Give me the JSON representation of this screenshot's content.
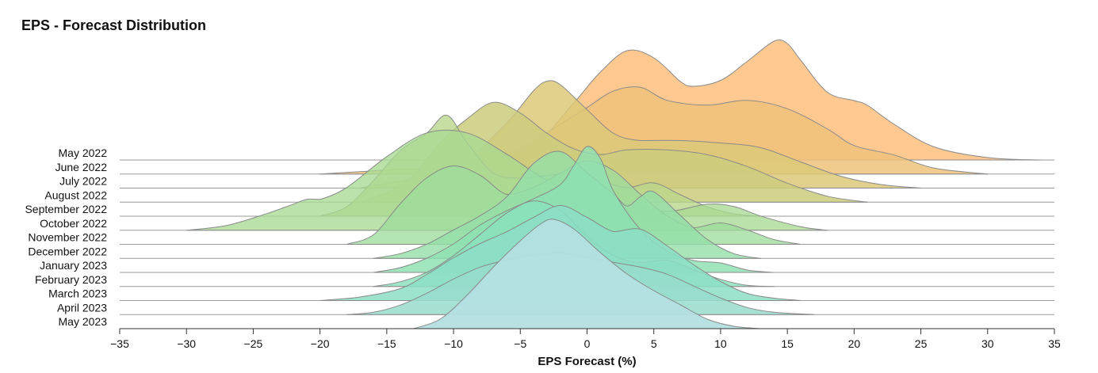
{
  "chart_data": {
    "type": "ridgeline",
    "title": "EPS - Forecast Distribution",
    "xlabel": "EPS Forecast (%)",
    "ylabel": "",
    "xlim": [
      -35,
      35
    ],
    "x_ticks": [
      -35,
      -30,
      -25,
      -20,
      -15,
      -10,
      -5,
      0,
      5,
      10,
      15,
      20,
      25,
      30,
      35
    ],
    "grid": false,
    "series": [
      {
        "name": "May 2022",
        "color": "#fdbf7e",
        "opacity": 0.85,
        "x": [
          -10,
          -7,
          -4,
          -1,
          1,
          3,
          5,
          7,
          8,
          10,
          12,
          14,
          15,
          16,
          18,
          20,
          21,
          23,
          26,
          30,
          34
        ],
        "density": [
          0,
          0.04,
          0.12,
          0.48,
          0.74,
          0.92,
          0.86,
          0.66,
          0.62,
          0.67,
          0.83,
          1.0,
          0.98,
          0.84,
          0.57,
          0.5,
          0.46,
          0.3,
          0.11,
          0.02,
          0
        ]
      },
      {
        "name": "June 2022",
        "color": "#f0c27a",
        "opacity": 0.85,
        "x": [
          -20,
          -17,
          -14,
          -10,
          -7,
          -4,
          -2,
          0,
          2,
          4,
          6,
          9,
          12,
          15,
          18,
          20,
          23,
          26,
          30
        ],
        "density": [
          0,
          0.02,
          0.04,
          0.05,
          0.1,
          0.28,
          0.42,
          0.56,
          0.7,
          0.73,
          0.62,
          0.58,
          0.62,
          0.55,
          0.38,
          0.24,
          0.16,
          0.05,
          0
        ]
      },
      {
        "name": "July 2022",
        "color": "#dcc978",
        "opacity": 0.85,
        "x": [
          -17,
          -15,
          -12,
          -9,
          -6,
          -4,
          -3,
          -2,
          0,
          2,
          4,
          7,
          10,
          13,
          16,
          19,
          22,
          25
        ],
        "density": [
          0,
          0.04,
          0.1,
          0.24,
          0.55,
          0.82,
          0.9,
          0.87,
          0.66,
          0.46,
          0.4,
          0.4,
          0.38,
          0.34,
          0.22,
          0.1,
          0.03,
          0
        ]
      },
      {
        "name": "August 2022",
        "color": "#cccd7e",
        "opacity": 0.85,
        "x": [
          -17,
          -15,
          -13,
          -11,
          -9,
          -7,
          -5,
          -3,
          -1,
          1,
          3,
          6,
          9,
          12,
          15,
          18,
          21
        ],
        "density": [
          0,
          0.08,
          0.22,
          0.5,
          0.7,
          0.84,
          0.75,
          0.58,
          0.45,
          0.4,
          0.44,
          0.44,
          0.4,
          0.3,
          0.16,
          0.05,
          0
        ]
      },
      {
        "name": "September 2022",
        "color": "#b8d68a",
        "opacity": 0.78,
        "x": [
          -20,
          -18,
          -16,
          -14,
          -12,
          -10.5,
          -9,
          -7,
          -5,
          -3,
          -1,
          1,
          3,
          5,
          7,
          9,
          11,
          13
        ],
        "density": [
          0,
          0.08,
          0.3,
          0.55,
          0.7,
          0.85,
          0.62,
          0.36,
          0.32,
          0.34,
          0.36,
          0.3,
          0.24,
          0.28,
          0.18,
          0.08,
          0.02,
          0
        ]
      },
      {
        "name": "October 2022",
        "color": "#a8da92",
        "opacity": 0.78,
        "x": [
          -30,
          -27,
          -24,
          -22,
          -21,
          -20,
          -18,
          -15,
          -12,
          -9,
          -6,
          -3,
          0,
          3,
          6,
          9,
          11,
          13,
          16,
          18
        ],
        "density": [
          0,
          0.04,
          0.14,
          0.22,
          0.26,
          0.26,
          0.36,
          0.62,
          0.82,
          0.82,
          0.64,
          0.42,
          0.3,
          0.22,
          0.16,
          0.22,
          0.2,
          0.12,
          0.03,
          0
        ]
      },
      {
        "name": "November 2022",
        "color": "#9edc9c",
        "opacity": 0.78,
        "x": [
          -18,
          -16,
          -14,
          -12,
          -10,
          -8,
          -6,
          -4,
          -2,
          0,
          2,
          4,
          6,
          8,
          10,
          12,
          14,
          16
        ],
        "density": [
          0,
          0.08,
          0.34,
          0.56,
          0.66,
          0.58,
          0.42,
          0.48,
          0.6,
          0.7,
          0.62,
          0.42,
          0.24,
          0.14,
          0.18,
          0.12,
          0.04,
          0
        ]
      },
      {
        "name": "December 2022",
        "color": "#94dea8",
        "opacity": 0.8,
        "x": [
          -16,
          -14,
          -12,
          -10,
          -8,
          -6,
          -4,
          -2,
          0,
          2,
          3,
          4,
          5,
          7,
          9,
          11,
          13
        ],
        "density": [
          0,
          0.04,
          0.12,
          0.24,
          0.36,
          0.52,
          0.8,
          0.9,
          0.72,
          0.54,
          0.44,
          0.52,
          0.56,
          0.36,
          0.16,
          0.04,
          0
        ]
      },
      {
        "name": "January 2023",
        "color": "#8ee0b2",
        "opacity": 0.82,
        "x": [
          -16,
          -14,
          -12,
          -10,
          -8,
          -6,
          -4,
          -2,
          -1,
          0,
          1,
          2,
          4,
          6,
          8,
          10,
          12,
          14
        ],
        "density": [
          0,
          0.04,
          0.12,
          0.24,
          0.4,
          0.52,
          0.62,
          0.74,
          0.9,
          1.06,
          0.96,
          0.68,
          0.36,
          0.18,
          0.1,
          0.08,
          0.02,
          0
        ]
      },
      {
        "name": "February 2023",
        "color": "#8ae0bc",
        "opacity": 0.82,
        "x": [
          -16,
          -14,
          -12,
          -10,
          -8,
          -6,
          -4,
          -2,
          0,
          2,
          4,
          6,
          8,
          10,
          12,
          14
        ],
        "density": [
          0,
          0.04,
          0.12,
          0.26,
          0.44,
          0.62,
          0.72,
          0.64,
          0.42,
          0.26,
          0.2,
          0.22,
          0.14,
          0.06,
          0.01,
          0
        ]
      },
      {
        "name": "March 2023",
        "color": "#8cdec6",
        "opacity": 0.85,
        "x": [
          -20,
          -17,
          -14,
          -12,
          -10,
          -8,
          -6,
          -4,
          -2,
          0,
          2,
          4,
          6,
          8,
          10,
          12,
          14,
          16
        ],
        "density": [
          0,
          0.03,
          0.1,
          0.22,
          0.36,
          0.48,
          0.58,
          0.7,
          0.8,
          0.7,
          0.58,
          0.6,
          0.46,
          0.3,
          0.16,
          0.06,
          0.02,
          0
        ]
      },
      {
        "name": "April 2023",
        "color": "#98dccc",
        "opacity": 0.85,
        "x": [
          -18,
          -16,
          -14,
          -12,
          -10,
          -8,
          -6,
          -4,
          -2,
          0,
          2,
          4,
          6,
          8,
          10,
          12,
          14,
          17
        ],
        "density": [
          0,
          0.02,
          0.08,
          0.18,
          0.3,
          0.4,
          0.46,
          0.5,
          0.52,
          0.48,
          0.44,
          0.4,
          0.34,
          0.24,
          0.14,
          0.06,
          0.02,
          0
        ]
      },
      {
        "name": "May 2023",
        "color": "#b4dfe2",
        "opacity": 0.95,
        "x": [
          -13,
          -11,
          -9,
          -7,
          -5,
          -3.5,
          -2.5,
          -1,
          1,
          3,
          5,
          7,
          9,
          11,
          13
        ],
        "density": [
          0,
          0.08,
          0.28,
          0.52,
          0.74,
          0.88,
          0.92,
          0.84,
          0.64,
          0.46,
          0.32,
          0.2,
          0.08,
          0.02,
          0
        ]
      }
    ]
  }
}
